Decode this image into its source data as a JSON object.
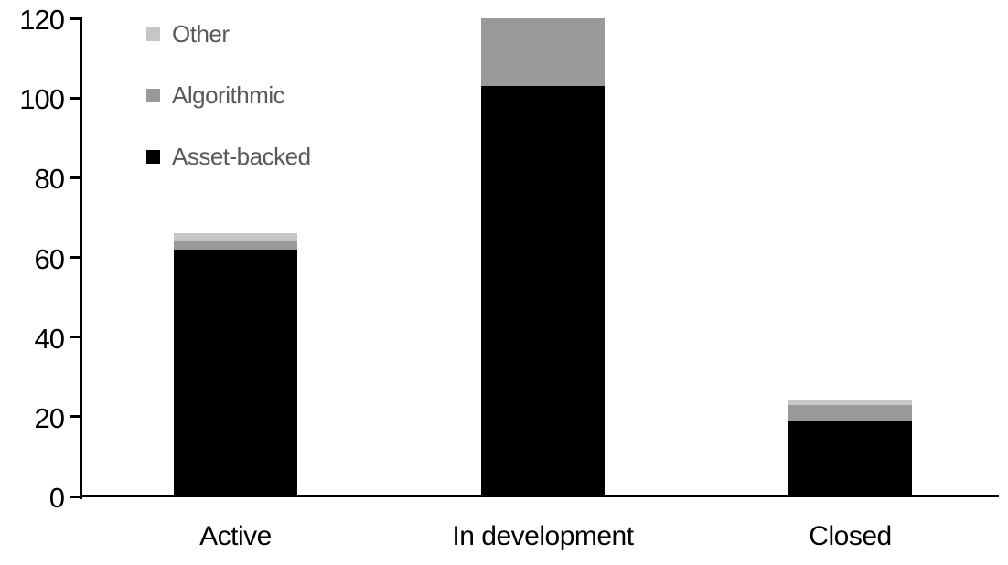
{
  "chart_data": {
    "type": "bar",
    "stacked": true,
    "title": "",
    "xlabel": "",
    "ylabel": "",
    "categories": [
      "Active",
      "In development",
      "Closed"
    ],
    "series": [
      {
        "name": "Asset-backed",
        "color": "#000000",
        "values": [
          62,
          103,
          19
        ]
      },
      {
        "name": "Algorithmic",
        "color": "#999999",
        "values": [
          2,
          17,
          4
        ]
      },
      {
        "name": "Other",
        "color": "#c6c6c6",
        "values": [
          2,
          0,
          1
        ]
      }
    ],
    "stack_totals": [
      66,
      120,
      24
    ],
    "y_axis": {
      "min": 0,
      "max": 120,
      "tick_interval": 20,
      "tick_labels": [
        "0",
        "20",
        "40",
        "60",
        "80",
        "100",
        "120"
      ]
    },
    "x_axis": {
      "labels": [
        "Active",
        "In development",
        "Closed"
      ]
    },
    "legend": {
      "position": "top-left",
      "entries": [
        {
          "label": "Other",
          "color": "#c6c6c6"
        },
        {
          "label": "Algorithmic",
          "color": "#999999"
        },
        {
          "label": "Asset-backed",
          "color": "#000000"
        }
      ]
    },
    "grid": false
  },
  "style_colors": {
    "background": "#ffffff",
    "axis": "#000000",
    "tick_label_text": "#000000",
    "category_label_text": "#000000",
    "legend_text": "#595959"
  }
}
